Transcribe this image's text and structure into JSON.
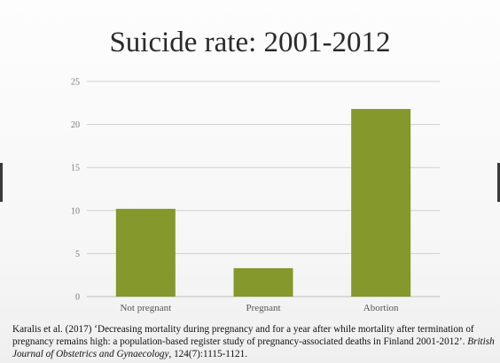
{
  "slide": {
    "title": "Suicide rate: 2001-2012"
  },
  "citation": {
    "text_before_journal": "Karalis et al. (2017) ‘Decreasing mortality during pregnancy and for a year after while mortality after termination of pregnancy remains high: a population-based register study of pregnancy-associated deaths in Finland 2001-2012’. ",
    "journal": "British Journal of Obstetrics and Gynaecology",
    "text_after_journal": ", 124(7):1115-1121."
  },
  "colors": {
    "bar": "#84982b",
    "grid": "#cfcfcf",
    "axis": "#bdbdbd"
  },
  "chart_data": {
    "type": "bar",
    "title": "Suicide rate: 2001-2012",
    "categories": [
      "Not pregnant",
      "Pregnant",
      "Abortion"
    ],
    "values": [
      10.2,
      3.3,
      21.8
    ],
    "xlabel": "",
    "ylabel": "",
    "ylim": [
      0,
      25
    ],
    "yticks": [
      "0",
      "5",
      "10",
      "15",
      "20",
      "25"
    ],
    "grid": true,
    "legend": "none"
  }
}
